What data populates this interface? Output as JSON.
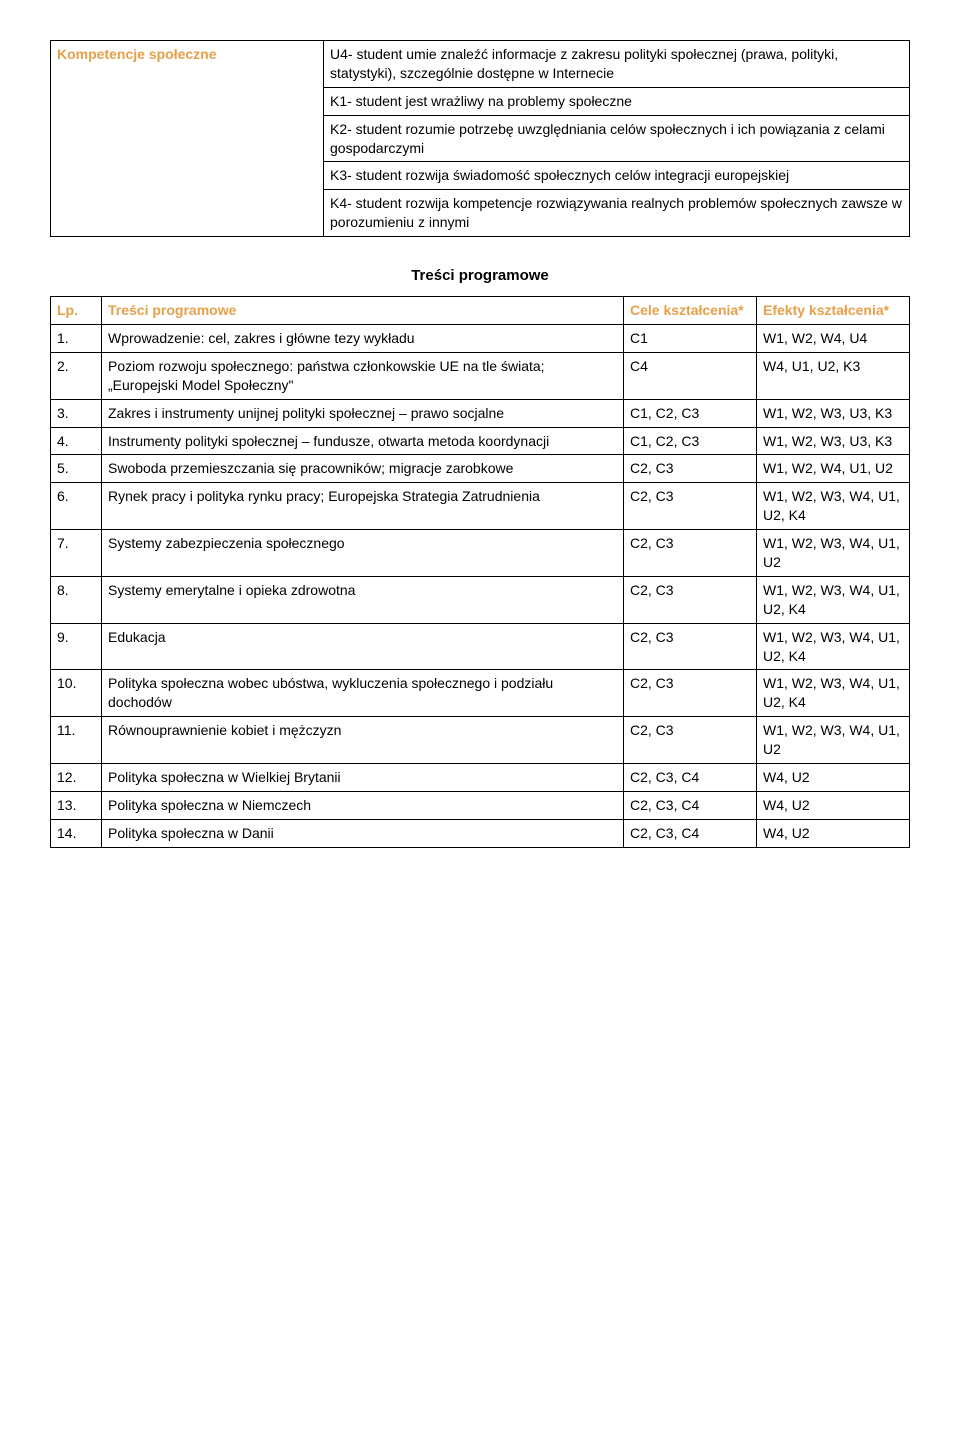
{
  "topTable": {
    "leftLabel": "Kompetencje społeczne",
    "rightItems": [
      "U4- student umie znaleźć informacje z zakresu polityki społecznej (prawa, polityki, statystyki), szczególnie dostępne w Internecie",
      "K1- student jest wrażliwy na problemy społeczne",
      "K2- student rozumie potrzebę uwzględniania celów społecznych i ich powiązania z celami gospodarczymi",
      "K3- student rozwija świadomość społecznych celów integracji europejskiej",
      "K4- student rozwija kompetencje rozwiązywania realnych problemów społecznych zawsze w porozumieniu z innymi"
    ]
  },
  "sectionTitle": "Treści programowe",
  "headers": {
    "lp": "Lp.",
    "topic": "Treści programowe",
    "cele": "Cele kształcenia*",
    "efekty": "Efekty kształcenia*"
  },
  "rows": [
    {
      "lp": "1.",
      "topic": "Wprowadzenie: cel, zakres i główne tezy wykładu",
      "cele": "C1",
      "efekty": "W1, W2, W4, U4"
    },
    {
      "lp": "2.",
      "topic": "Poziom rozwoju społecznego: państwa członkowskie UE na tle świata; „Europejski Model Społeczny\"",
      "cele": "C4",
      "efekty": "W4, U1, U2, K3"
    },
    {
      "lp": "3.",
      "topic": "Zakres i instrumenty unijnej polityki społecznej – prawo socjalne",
      "cele": "C1, C2, C3",
      "efekty": "W1, W2, W3, U3, K3"
    },
    {
      "lp": "4.",
      "topic": "Instrumenty polityki społecznej – fundusze, otwarta metoda koordynacji",
      "cele": "C1, C2, C3",
      "efekty": "W1, W2, W3, U3, K3"
    },
    {
      "lp": "5.",
      "topic": "Swoboda przemieszczania się pracowników; migracje zarobkowe",
      "cele": "C2, C3",
      "efekty": "W1, W2, W4, U1, U2"
    },
    {
      "lp": "6.",
      "topic": "Rynek pracy i polityka rynku pracy; Europejska Strategia Zatrudnienia",
      "cele": "C2, C3",
      "efekty": "W1, W2, W3, W4, U1, U2, K4"
    },
    {
      "lp": "7.",
      "topic": "Systemy zabezpieczenia społecznego",
      "cele": "C2, C3",
      "efekty": "W1, W2, W3, W4, U1, U2"
    },
    {
      "lp": "8.",
      "topic": "Systemy emerytalne i opieka zdrowotna",
      "cele": "C2, C3",
      "efekty": "W1, W2, W3, W4, U1, U2, K4"
    },
    {
      "lp": "9.",
      "topic": "Edukacja",
      "cele": "C2, C3",
      "efekty": "W1, W2, W3, W4, U1, U2, K4"
    },
    {
      "lp": "10.",
      "topic": "Polityka społeczna wobec ubóstwa, wykluczenia społecznego i podziału dochodów",
      "cele": "C2, C3",
      "efekty": "W1, W2, W3, W4, U1, U2, K4"
    },
    {
      "lp": "11.",
      "topic": "Równouprawnienie kobiet i mężczyzn",
      "cele": "C2, C3",
      "efekty": "W1, W2, W3, W4, U1, U2"
    },
    {
      "lp": "12.",
      "topic": "Polityka społeczna w Wielkiej Brytanii",
      "cele": "C2, C3, C4",
      "efekty": "W4, U2"
    },
    {
      "lp": "13.",
      "topic": "Polityka społeczna w Niemczech",
      "cele": "C2, C3, C4",
      "efekty": "W4, U2"
    },
    {
      "lp": "14.",
      "topic": "Polityka społeczna w Danii",
      "cele": "C2, C3, C4",
      "efekty": "W4, U2"
    }
  ]
}
